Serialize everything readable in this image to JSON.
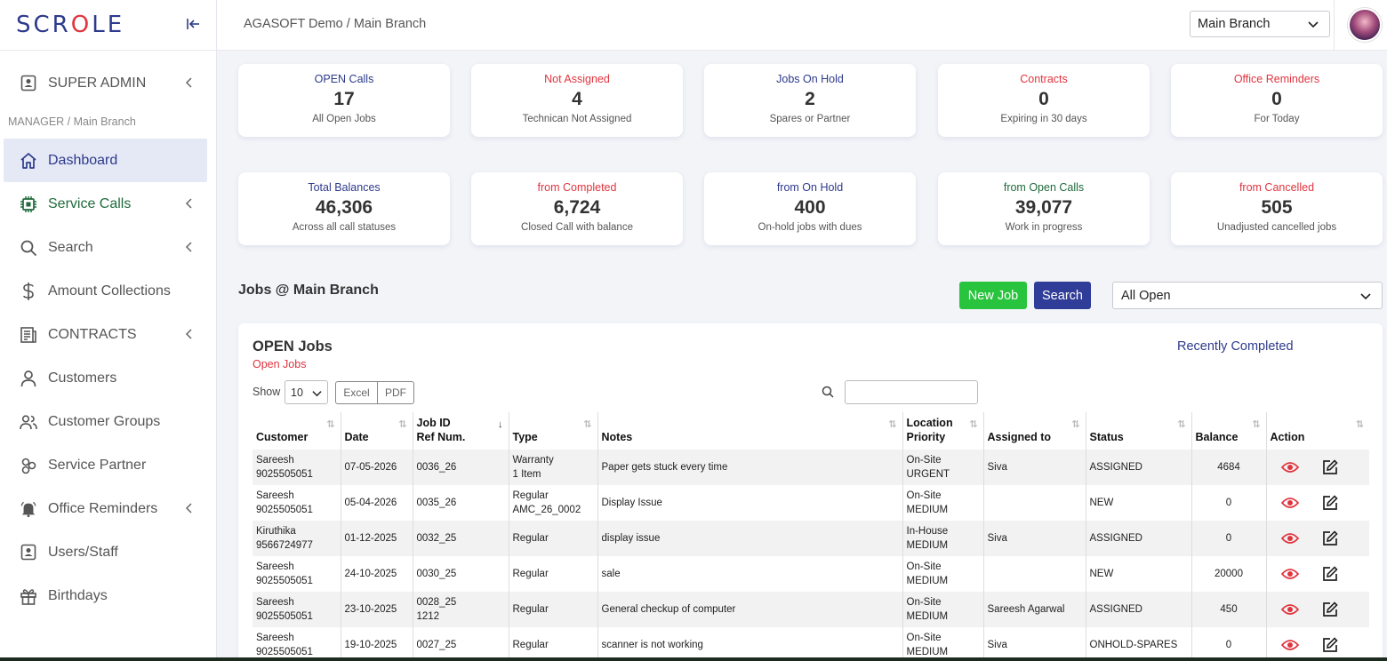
{
  "brand": {
    "logo_pre": "SCR",
    "logo_o": "O",
    "logo_post": "LE"
  },
  "topbar": {
    "breadcrumb": "AGASOFT Demo / Main Branch",
    "branch_selected": "Main Branch"
  },
  "sidebar": {
    "section_label": "MANAGER / Main Branch",
    "items": [
      {
        "label": "SUPER ADMIN",
        "icon": "id-badge-icon"
      },
      {
        "label": "Dashboard",
        "icon": "home-icon"
      },
      {
        "label": "Service Calls",
        "icon": "chip-icon"
      },
      {
        "label": "Search",
        "icon": "search-icon"
      },
      {
        "label": "Amount Collections",
        "icon": "dollar-icon"
      },
      {
        "label": "CONTRACTS",
        "icon": "document-icon"
      },
      {
        "label": "Customers",
        "icon": "user-icon"
      },
      {
        "label": "Customer Groups",
        "icon": "users-icon"
      },
      {
        "label": "Service Partner",
        "icon": "partner-icon"
      },
      {
        "label": "Office Reminders",
        "icon": "bell-icon"
      },
      {
        "label": "Users/Staff",
        "icon": "id-badge-icon"
      },
      {
        "label": "Birthdays",
        "icon": "gift-icon"
      }
    ]
  },
  "stats_row1": [
    {
      "title": "OPEN Calls",
      "value": "17",
      "sub": "All Open Jobs"
    },
    {
      "title": "Not Assigned",
      "value": "4",
      "sub": "Technican Not Assigned"
    },
    {
      "title": "Jobs On Hold",
      "value": "2",
      "sub": "Spares or Partner"
    },
    {
      "title": "Contracts",
      "value": "0",
      "sub": "Expiring in 30 days"
    },
    {
      "title": "Office Reminders",
      "value": "0",
      "sub": "For Today"
    }
  ],
  "stats_row2": [
    {
      "title": "Total Balances",
      "value": "46,306",
      "sub": "Across all call statuses"
    },
    {
      "title": "from Completed",
      "value": "6,724",
      "sub": "Closed Call with balance"
    },
    {
      "title": "from On Hold",
      "value": "400",
      "sub": "On-hold jobs with dues"
    },
    {
      "title": "from Open Calls",
      "value": "39,077",
      "sub": "Work in progress"
    },
    {
      "title": "from Cancelled",
      "value": "505",
      "sub": "Unadjusted cancelled jobs"
    }
  ],
  "jobs": {
    "heading": "Jobs @ Main Branch",
    "new_job": "New Job",
    "search": "Search",
    "filter_selected": "All Open",
    "panel_title": "OPEN Jobs",
    "panel_sub": "Open Jobs",
    "recently_completed": "Recently Completed",
    "show_label": "Show",
    "page_length": "10",
    "excel": "Excel",
    "pdf": "PDF"
  },
  "table": {
    "headers": {
      "customer": "Customer",
      "date": "Date",
      "jobid_1": "Job ID",
      "jobid_2": "Ref Num.",
      "type": "Type",
      "notes": "Notes",
      "loc_1": "Location",
      "loc_2": "Priority",
      "assigned": "Assigned to",
      "status": "Status",
      "balance": "Balance",
      "action": "Action"
    },
    "rows": [
      {
        "name": "Sareesh",
        "phone": "9025505051",
        "date": "07-05-2026",
        "jobid": "0036_26",
        "ref": "",
        "type": "Warranty",
        "type2": "1 Item",
        "notes": "Paper gets stuck every time",
        "loc": "On-Site",
        "priority": "URGENT",
        "assigned": "Siva",
        "status": "ASSIGNED",
        "balance": "4684"
      },
      {
        "name": "Sareesh",
        "phone": "9025505051",
        "date": "05-04-2026",
        "jobid": "0035_26",
        "ref": "",
        "type": "Regular",
        "type2": "AMC_26_0002",
        "notes": "Display Issue",
        "loc": "On-Site",
        "priority": "MEDIUM",
        "assigned": "",
        "status": "NEW",
        "balance": "0"
      },
      {
        "name": "Kiruthika",
        "phone": "9566724977",
        "date": "01-12-2025",
        "jobid": "0032_25",
        "ref": "",
        "type": "Regular",
        "type2": "",
        "notes": "display issue",
        "loc": "In-House",
        "priority": "MEDIUM",
        "assigned": "Siva",
        "status": "ASSIGNED",
        "balance": "0"
      },
      {
        "name": "Sareesh",
        "phone": "9025505051",
        "date": "24-10-2025",
        "jobid": "0030_25",
        "ref": "",
        "type": "Regular",
        "type2": "",
        "notes": "sale",
        "loc": "On-Site",
        "priority": "MEDIUM",
        "assigned": "",
        "status": "NEW",
        "balance": "20000"
      },
      {
        "name": "Sareesh",
        "phone": "9025505051",
        "date": "23-10-2025",
        "jobid": "0028_25",
        "ref": "1212",
        "type": "Regular",
        "type2": "",
        "notes": "General checkup of computer",
        "loc": "On-Site",
        "priority": "MEDIUM",
        "assigned": "Sareesh Agarwal",
        "status": "ASSIGNED",
        "balance": "450"
      },
      {
        "name": "Sareesh",
        "phone": "9025505051",
        "date": "19-10-2025",
        "jobid": "0027_25",
        "ref": "",
        "type": "Regular",
        "type2": "",
        "notes": "scanner is not working",
        "loc": "On-Site",
        "priority": "MEDIUM",
        "assigned": "Siva",
        "status": "ONHOLD-SPARES",
        "balance": "0"
      }
    ]
  },
  "colors": {
    "brand_blue": "#2d3a8c",
    "alert_red": "#e0343f",
    "green": "#28c43d",
    "dark_green": "#1f6b3b"
  }
}
